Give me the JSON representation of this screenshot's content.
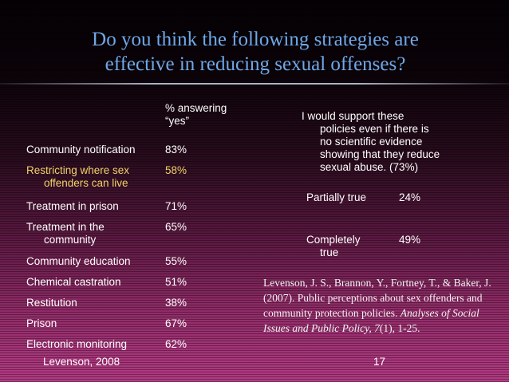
{
  "title": {
    "line1": "Do you think the following strategies are",
    "line2": "effective in reducing sexual offenses?"
  },
  "table": {
    "header_line1": "% answering",
    "header_line2": "“yes”",
    "rows": [
      {
        "label_line1": "Community notification",
        "label_line2": "",
        "value": "83%"
      },
      {
        "label_line1": "Restricting where sex",
        "label_line2": "offenders can live",
        "value": "58%"
      },
      {
        "label_line1": "Treatment in prison",
        "label_line2": "",
        "value": "71%"
      },
      {
        "label_line1": "Treatment in the",
        "label_line2": "community",
        "value": "65%"
      },
      {
        "label_line1": "Community education",
        "label_line2": "",
        "value": "55%"
      },
      {
        "label_line1": "Chemical castration",
        "label_line2": "",
        "value": "51%"
      },
      {
        "label_line1": "Restitution",
        "label_line2": "",
        "value": "38%"
      },
      {
        "label_line1": "Prison",
        "label_line2": "",
        "value": "67%"
      },
      {
        "label_line1": "Electronic monitoring",
        "label_line2": "",
        "value": "62%"
      }
    ]
  },
  "support": {
    "line1": "I would support these",
    "line2": "policies even if there is",
    "line3": "no scientific evidence",
    "line4": "showing that they reduce",
    "line5": "sexual abuse. (73%)"
  },
  "responses": [
    {
      "label_line1": "Partially true",
      "label_line2": "",
      "value": "24%"
    },
    {
      "label_line1": "Completely",
      "label_line2": "true",
      "value": "49%"
    }
  ],
  "reference": {
    "plain": "Levenson, J. S., Brannon, Y., Fortney, T., & Baker, J. (2007). Public perceptions about sex offenders and community protection policies. ",
    "journal": "Analyses of Social Issues and Public Policy, 7",
    "tail": "(1), 1-25."
  },
  "footer": {
    "left": "Levenson, 2008",
    "page": "17"
  },
  "colors": {
    "title": "#6fa8e8",
    "highlight": "#f2d268"
  }
}
